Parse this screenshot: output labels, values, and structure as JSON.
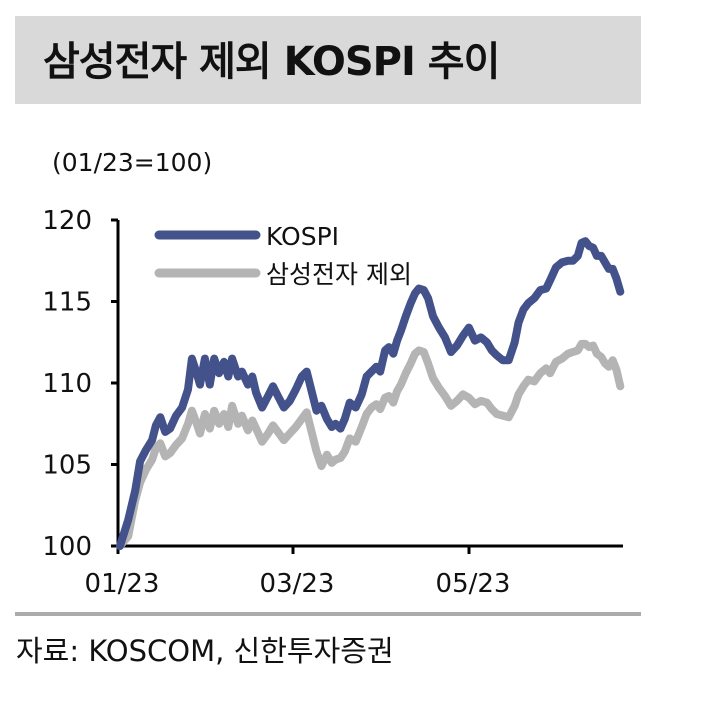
{
  "title": "삼성전자 제외 KOSPI 추이",
  "unit_label": "(01/23=100)",
  "source": "자료: KOSCOM, 신한투자증권",
  "colors": {
    "kospi": "#43528a",
    "ex_samsung": "#b4b4b4",
    "title_bg": "#d9d9d9",
    "divider": "#ababab"
  },
  "chart_data": {
    "type": "line",
    "title": "삼성전자 제외 KOSPI 추이",
    "xlabel": "",
    "ylabel": "(01/23=100)",
    "ylim": [
      100,
      120
    ],
    "yticks": [
      100,
      105,
      110,
      115,
      120
    ],
    "xtick_labels": [
      "01/23",
      "03/23",
      "05/23"
    ],
    "grid": false,
    "legend_position": "upper left",
    "legend": [
      "KOSPI",
      "삼성전자 제외"
    ],
    "x": [
      0,
      1.5,
      2.8,
      3.7,
      4.8,
      5.9,
      6.6,
      7.4,
      8.3,
      9.2,
      10.3,
      11.4,
      12.5,
      13.2,
      14,
      14.7,
      15.6,
      16.5,
      17.3,
      18.2,
      19.1,
      19.9,
      20.6,
      21.7,
      22.4,
      23.5,
      24.3,
      25,
      26.1,
      27.2,
      28.1,
      29,
      30.1,
      31.2,
      32.3,
      33.4,
      34.3,
      35.2,
      36.1,
      37,
      38,
      38.9,
      39.6,
      40.5,
      41.3,
      42.2,
      43.3,
      44.4,
      45.3,
      46.2,
      47.1,
      47.8,
      48.7,
      49.4,
      50.2,
      50.9,
      51.6,
      52.5,
      53.4,
      54.2,
      54.9,
      55.8,
      56.6,
      57.5,
      58.6,
      59.7,
      60.8,
      61.9,
      63,
      64.1,
      65.2,
      66.3,
      67.4,
      68.3,
      69.2,
      70.3,
      71.4,
      72.5,
      73.2,
      74.1,
      75,
      76.1,
      77.2,
      78.3,
      79,
      80.1,
      81.2,
      82.3,
      83.2,
      84.1,
      84.8,
      85.5,
      86.2,
      86.9,
      87.6,
      88.4,
      89.1,
      89.8,
      90.5,
      91.2,
      91.9,
      92.4
    ],
    "series": [
      {
        "name": "KOSPI",
        "color": "#43528a",
        "values": [
          100,
          101.6,
          103.4,
          105.2,
          105.9,
          106.5,
          107.4,
          107.9,
          107,
          107.2,
          108,
          108.5,
          109.6,
          111.5,
          110.7,
          109.9,
          111.5,
          109.9,
          111.5,
          110.6,
          111.3,
          110.4,
          111.5,
          110.4,
          110.7,
          109.9,
          110.4,
          109.4,
          108.5,
          109.2,
          109.8,
          109.2,
          108.5,
          108.9,
          109.6,
          110.4,
          110.7,
          109.5,
          108.3,
          108.6,
          107.8,
          107.3,
          107.5,
          107.2,
          107.8,
          108.8,
          108.5,
          109.3,
          110.4,
          110.7,
          111,
          110.7,
          112,
          112.2,
          111.8,
          112.6,
          113.2,
          114.1,
          114.9,
          115.5,
          115.8,
          115.7,
          115.2,
          114.1,
          113.4,
          112.8,
          111.9,
          112.3,
          112.9,
          113.4,
          112.6,
          112.8,
          112.5,
          112,
          111.7,
          111.4,
          111.4,
          112.5,
          113.7,
          114.5,
          114.9,
          115.2,
          115.7,
          115.8,
          116.3,
          117.1,
          117.4,
          117.5,
          117.5,
          117.8,
          118.6,
          118.7,
          118.4,
          118.3,
          117.8,
          117.8,
          117.4,
          117,
          117,
          116.4,
          115.6
        ]
      },
      {
        "name": "삼성전자 제외",
        "color": "#b4b4b4",
        "values": [
          100,
          100.6,
          102.8,
          103.9,
          104.7,
          105.3,
          106,
          106.3,
          105.5,
          105.7,
          106.2,
          106.6,
          107.5,
          108.3,
          107.6,
          106.9,
          108.1,
          107.2,
          108.3,
          107.5,
          108.1,
          107.3,
          108.6,
          107.5,
          108,
          107.1,
          107.7,
          107.2,
          106.4,
          106.9,
          107.4,
          107,
          106.5,
          106.9,
          107.3,
          107.8,
          108.2,
          107,
          105.8,
          104.9,
          105.6,
          105.1,
          105.3,
          105.4,
          105.8,
          106.6,
          106.4,
          107.3,
          108.1,
          108.5,
          108.7,
          108.4,
          109.1,
          109.2,
          108.8,
          109.5,
          109.9,
          110.6,
          111.2,
          111.8,
          112,
          111.9,
          111.2,
          110.3,
          109.7,
          109.2,
          108.6,
          108.9,
          109.3,
          109.1,
          108.7,
          108.9,
          108.8,
          108.4,
          108.1,
          108,
          107.9,
          108.6,
          109.3,
          109.8,
          110.2,
          110.1,
          110.6,
          110.9,
          110.6,
          111.3,
          111.5,
          111.8,
          111.9,
          112,
          112.4,
          112.4,
          112.2,
          112.3,
          111.8,
          111.6,
          111.2,
          111,
          111.4,
          110.8,
          109.8
        ]
      }
    ]
  }
}
